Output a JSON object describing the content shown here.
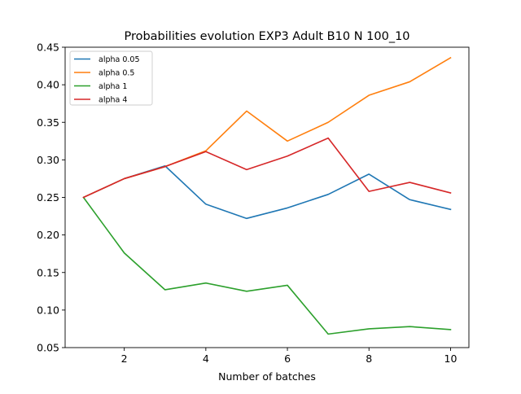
{
  "chart_data": {
    "type": "line",
    "title": "Probabilities evolution EXP3 Adult B10 N 100_10",
    "xlabel": "Number of batches",
    "ylabel": "",
    "x": [
      1,
      2,
      3,
      4,
      5,
      6,
      7,
      8,
      9,
      10
    ],
    "xlim": [
      0.55,
      10.45
    ],
    "ylim": [
      0.05,
      0.45
    ],
    "xticks": [
      2,
      4,
      6,
      8,
      10
    ],
    "xtick_labels": [
      "2",
      "4",
      "6",
      "8",
      "10"
    ],
    "yticks": [
      0.05,
      0.1,
      0.15,
      0.2,
      0.25,
      0.3,
      0.35,
      0.4,
      0.45
    ],
    "ytick_labels": [
      "0.05",
      "0.10",
      "0.15",
      "0.20",
      "0.25",
      "0.30",
      "0.35",
      "0.40",
      "0.45"
    ],
    "grid": false,
    "legend_position": "top-left",
    "series": [
      {
        "name": "alpha 0.05",
        "color": "#1f77b4",
        "values": [
          0.25,
          0.275,
          0.292,
          0.241,
          0.222,
          0.236,
          0.254,
          0.281,
          0.247,
          0.234
        ]
      },
      {
        "name": "alpha 0.5",
        "color": "#ff7f0e",
        "values": [
          0.25,
          0.275,
          0.291,
          0.312,
          0.365,
          0.325,
          0.35,
          0.386,
          0.404,
          0.436
        ]
      },
      {
        "name": "alpha 1",
        "color": "#2ca02c",
        "values": [
          0.25,
          0.176,
          0.127,
          0.136,
          0.125,
          0.133,
          0.068,
          0.075,
          0.078,
          0.074
        ]
      },
      {
        "name": "alpha 4",
        "color": "#d62728",
        "values": [
          0.25,
          0.275,
          0.291,
          0.311,
          0.287,
          0.305,
          0.329,
          0.258,
          0.27,
          0.256
        ]
      }
    ]
  }
}
